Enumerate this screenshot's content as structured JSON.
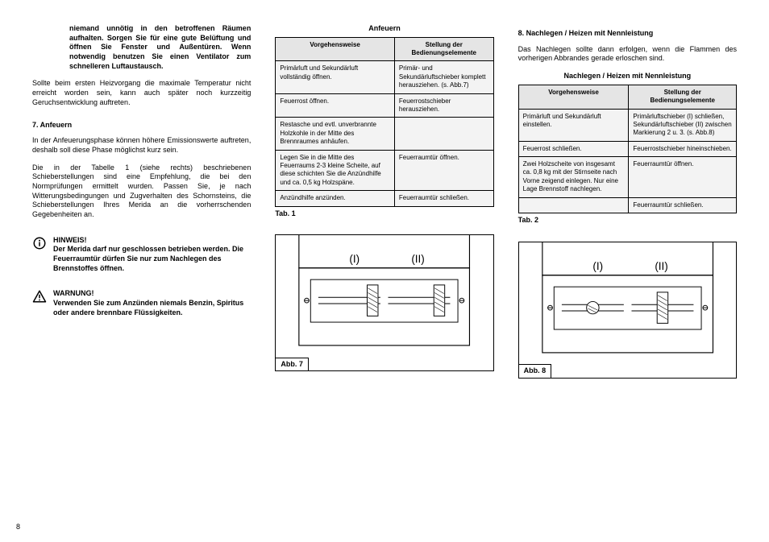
{
  "leftCol": {
    "intro_bold": "niemand unnötig in den betroffenen Räumen aufhalten. Sorgen Sie für eine gute Belüftung und öffnen Sie Fenster und Außentüren. Wenn notwendig benutzen Sie einen Ventilator zum schnelleren Luftaustausch.",
    "para1": "Sollte beim ersten Heizvorgang die maximale Temperatur nicht erreicht worden sein, kann auch später noch kurzzeitig Geruchsentwicklung auftreten.",
    "section7_head": "7.   Anfeuern",
    "para2": "In der Anfeuerungsphase können höhere Emissionswerte auftreten, deshalb soll diese Phase möglichst kurz sein.",
    "para3": "Die in der Tabelle 1 (siehe rechts) beschriebenen Schieberstellungen sind eine Empfehlung, die bei den Normprüfungen ermittelt wurden. Passen Sie, je nach Witterungsbedingungen und Zugverhalten des Schornsteins, die Schieberstellungen Ihres Merida an die vorherrschenden Gegebenheiten an.",
    "note1_title": "HINWEIS!",
    "note1_body": "Der Merida darf nur geschlossen betrieben werden. Die Feuerraumtür dürfen Sie nur zum Nachlegen des Brennstoffes öffnen.",
    "note2_title": "WARNUNG!",
    "note2_body": "Verwenden Sie zum Anzünden niemals Benzin, Spiritus oder andere brennbare Flüssigkeiten."
  },
  "midCol": {
    "tab1_title": "Anfeuern",
    "tab1_h1": "Vorgehensweise",
    "tab1_h2": "Stellung der Bedienungselemente",
    "tab1_rows": [
      [
        "Primärluft und Sekundärluft vollständig öffnen.",
        "Primär- und Sekundärluftschieber komplett herausziehen. (s. Abb.7)"
      ],
      [
        "Feuerrost öffnen.",
        "Feuerrostschieber herausziehen."
      ],
      [
        "Restasche und evtl. unverbrannte Holzkohle in der Mitte des Brennraumes anhäufen.",
        ""
      ],
      [
        "Legen Sie in die Mitte des Feuerraums 2-3 kleine Scheite, auf diese schichten Sie die Anzündhilfe und ca. 0,5 kg Holzspäne.",
        "Feuerraumtür öffnen."
      ],
      [
        "Anzündhilfe anzünden.",
        "Feuerraumtür schließen."
      ]
    ],
    "tab1_label": "Tab. 1",
    "fig7_label": "Abb. 7",
    "fig7_I": "(I)",
    "fig7_II": "(II)"
  },
  "rightCol": {
    "section8_head": "8.   Nachlegen / Heizen mit Nennleistung",
    "para1": "Das Nachlegen sollte dann erfolgen, wenn die Flammen des vorherigen Abbrandes gerade erloschen sind.",
    "tab2_title": "Nachlegen / Heizen mit Nennleistung",
    "tab2_h1": "Vorgehensweise",
    "tab2_h2": "Stellung der Bedienungselemente",
    "tab2_rows": [
      [
        "Primärluft und Sekundärluft einstellen.",
        "Primärluftschieber (I) schließen, Sekundärluftschieber (II) zwischen Markierung 2 u. 3. (s. Abb.8)"
      ],
      [
        "Feuerrost schließen.",
        "Feuerrostschieber hineinschieben."
      ],
      [
        "Zwei Holzscheite von insgesamt ca. 0,8 kg mit der Stirnseite nach Vorne zeigend einlegen. Nur eine Lage Brennstoff nachlegen.",
        "Feuerraumtür öffnen."
      ],
      [
        "",
        "Feuerraumtür schließen."
      ]
    ],
    "tab2_label": "Tab. 2",
    "fig8_label": "Abb. 8",
    "fig8_I": "(I)",
    "fig8_II": "(II)"
  },
  "pageNumber": "8"
}
